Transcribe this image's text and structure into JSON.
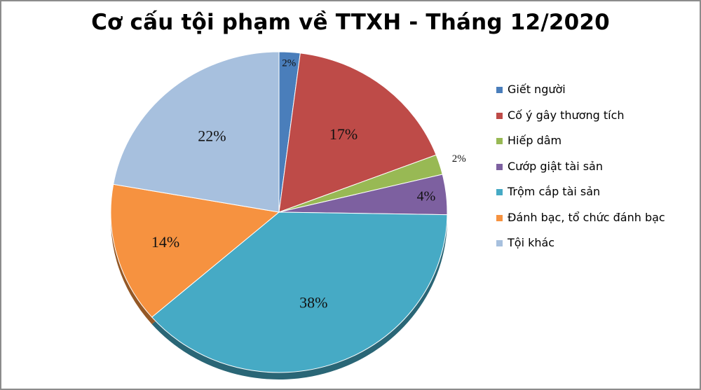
{
  "chart_data": {
    "type": "pie",
    "title": "Cơ cấu tội phạm về TTXH - Tháng 12/2020",
    "legend_position": "right",
    "slices": [
      {
        "label": "Giết người",
        "value": 2,
        "display": "2%",
        "color": "#4a7ebb"
      },
      {
        "label": "Cố ý gây thương tích",
        "value": 17,
        "display": "17%",
        "color": "#be4b48"
      },
      {
        "label": "Hiếp dâm",
        "value": 2,
        "display": "2%",
        "color": "#98b954"
      },
      {
        "label": "Cướp giật tài sản",
        "value": 4,
        "display": "4%",
        "color": "#7d60a0"
      },
      {
        "label": "Trộm cắp tài sản",
        "value": 38,
        "display": "38%",
        "color": "#46aac5"
      },
      {
        "label": "Đánh bạc, tổ chức đánh bạc",
        "value": 14,
        "display": "14%",
        "color": "#f69240"
      },
      {
        "label": "Tội khác",
        "value": 22,
        "display": "22%",
        "color": "#a7c0de"
      }
    ]
  }
}
